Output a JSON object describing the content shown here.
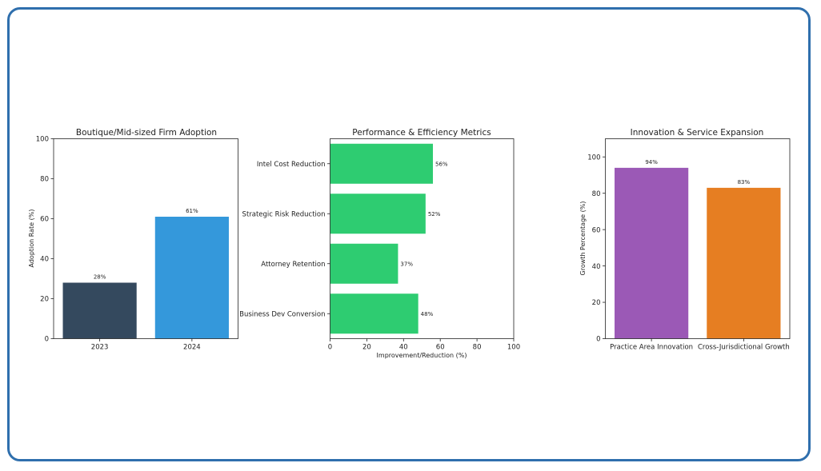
{
  "chart_data": [
    {
      "type": "bar",
      "title": "Boutique/Mid-sized Firm Adoption",
      "xlabel": "",
      "ylabel": "Adoption Rate (%)",
      "ylim": [
        0,
        100
      ],
      "yticks": [
        0,
        20,
        40,
        60,
        80,
        100
      ],
      "categories": [
        "2023",
        "2024"
      ],
      "values": [
        28,
        61
      ],
      "labels": [
        "28%",
        "61%"
      ],
      "colors": [
        "#34495e",
        "#3498db"
      ]
    },
    {
      "type": "barh",
      "title": "Performance & Efficiency Metrics",
      "xlabel": "Improvement/Reduction (%)",
      "ylabel": "",
      "xlim": [
        0,
        100
      ],
      "xticks": [
        0,
        20,
        40,
        60,
        80,
        100
      ],
      "categories": [
        "Intel Cost Reduction",
        "Strategic Risk Reduction",
        "Attorney Retention",
        "Business Dev Conversion"
      ],
      "values": [
        56,
        52,
        37,
        48
      ],
      "labels": [
        "56%",
        "52%",
        "37%",
        "48%"
      ],
      "colors": [
        "#2ecc71",
        "#2ecc71",
        "#2ecc71",
        "#2ecc71"
      ]
    },
    {
      "type": "bar",
      "title": "Innovation & Service Expansion",
      "xlabel": "",
      "ylabel": "Growth Percentage (%)",
      "ylim": [
        0,
        110
      ],
      "yticks": [
        0,
        20,
        40,
        60,
        80,
        100
      ],
      "categories": [
        "Practice Area Innovation",
        "Cross-Jurisdictional Growth"
      ],
      "values": [
        94,
        83
      ],
      "labels": [
        "94%",
        "83%"
      ],
      "colors": [
        "#9b59b6",
        "#e67e22"
      ]
    }
  ]
}
